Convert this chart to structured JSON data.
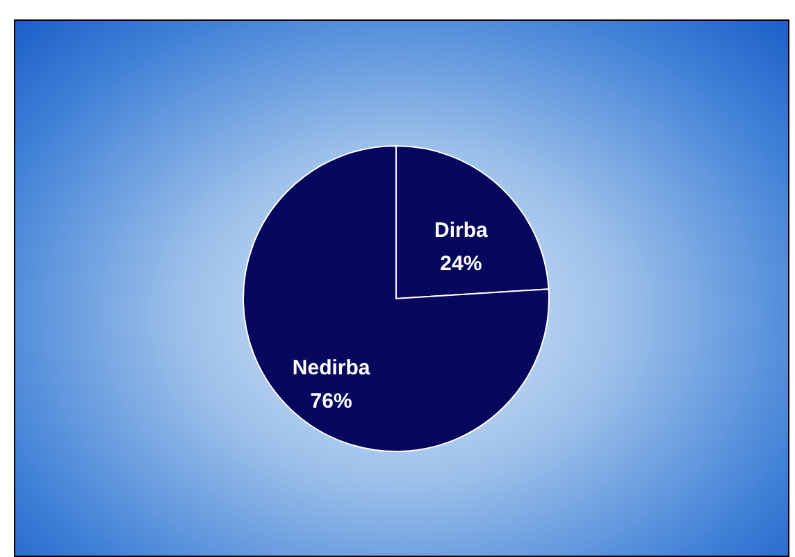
{
  "chart_data": {
    "type": "pie",
    "categories": [
      "Dirba",
      "Nedirba"
    ],
    "values": [
      24,
      76
    ],
    "colors": [
      "#07075e",
      "#07075e"
    ],
    "value_labels": [
      "24%",
      "76%"
    ]
  }
}
